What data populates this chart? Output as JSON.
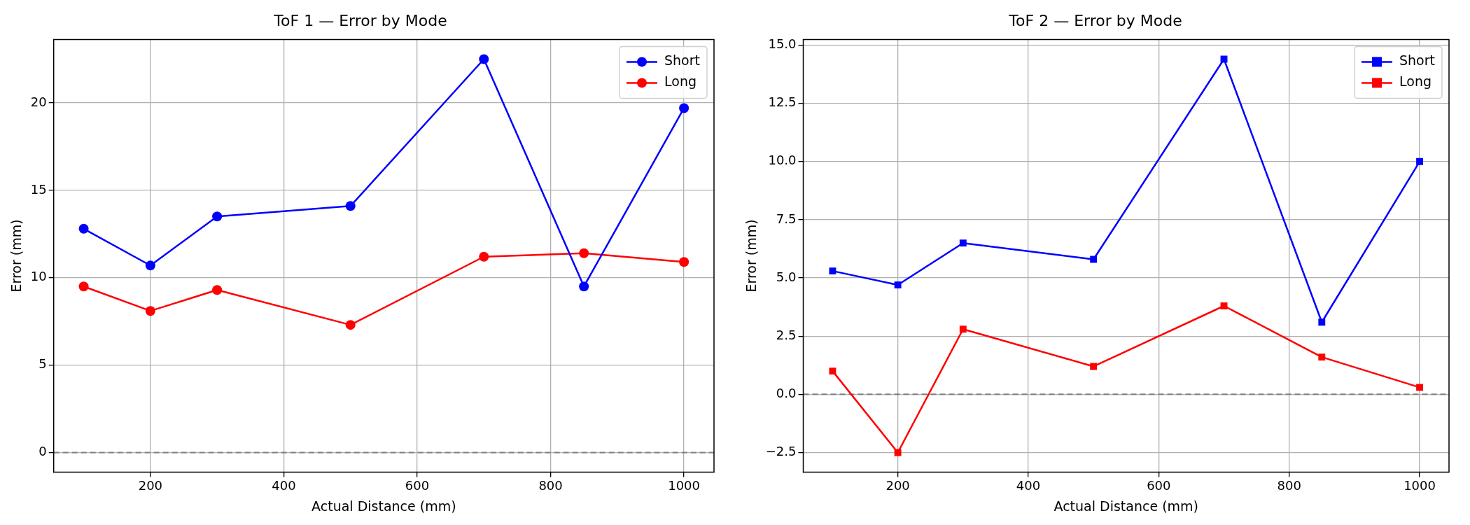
{
  "chart_data": [
    {
      "type": "line",
      "title": "ToF 1 — Error by Mode",
      "xlabel": "Actual Distance (mm)",
      "ylabel": "Error (mm)",
      "x": [
        100,
        200,
        300,
        500,
        700,
        850,
        1000
      ],
      "series": [
        {
          "name": "Short",
          "color": "#0000ff",
          "values": [
            12.8,
            10.7,
            13.5,
            14.1,
            22.5,
            9.5,
            19.7
          ]
        },
        {
          "name": "Long",
          "color": "#ff0000",
          "values": [
            9.5,
            8.1,
            9.3,
            7.3,
            11.2,
            11.4,
            10.9
          ]
        }
      ],
      "xlim": [
        55,
        1045
      ],
      "xticks": [
        200,
        400,
        600,
        800,
        1000
      ],
      "ylim": [
        -1.125,
        23.625
      ],
      "yticks": [
        0,
        5,
        10,
        15,
        20
      ],
      "ref_lines": [
        {
          "axis": "y",
          "value": 0,
          "color": "#808080",
          "line_style": "dashed"
        }
      ],
      "grid": true,
      "legend": "top right",
      "marker": "circle",
      "line_style": "solid"
    },
    {
      "type": "line",
      "title": "ToF 2 — Error by Mode",
      "xlabel": "Actual Distance (mm)",
      "ylabel": "Error (mm)",
      "x": [
        100,
        200,
        300,
        500,
        700,
        850,
        1000
      ],
      "series": [
        {
          "name": "Short",
          "color": "#0000ff",
          "values": [
            5.3,
            4.7,
            6.5,
            5.8,
            14.4,
            3.1,
            10.0
          ]
        },
        {
          "name": "Long",
          "color": "#ff0000",
          "values": [
            1.0,
            -2.5,
            2.8,
            1.2,
            3.8,
            1.6,
            0.3
          ]
        }
      ],
      "xlim": [
        55,
        1045
      ],
      "xticks": [
        200,
        400,
        600,
        800,
        1000
      ],
      "ylim": [
        -3.345,
        15.245
      ],
      "yticks": [
        {
          "value": -2.5,
          "label": "−2.5"
        },
        {
          "value": 0,
          "label": "0.0"
        },
        2.5,
        {
          "value": 5,
          "label": "5.0"
        },
        7.5,
        {
          "value": 10,
          "label": "10.0"
        },
        12.5,
        {
          "value": 15,
          "label": "15.0"
        }
      ],
      "ref_lines": [
        {
          "axis": "y",
          "value": 0,
          "color": "#808080",
          "line_style": "dashed"
        }
      ],
      "grid": true,
      "legend": "top right",
      "marker": "square",
      "line_style": "solid"
    }
  ]
}
